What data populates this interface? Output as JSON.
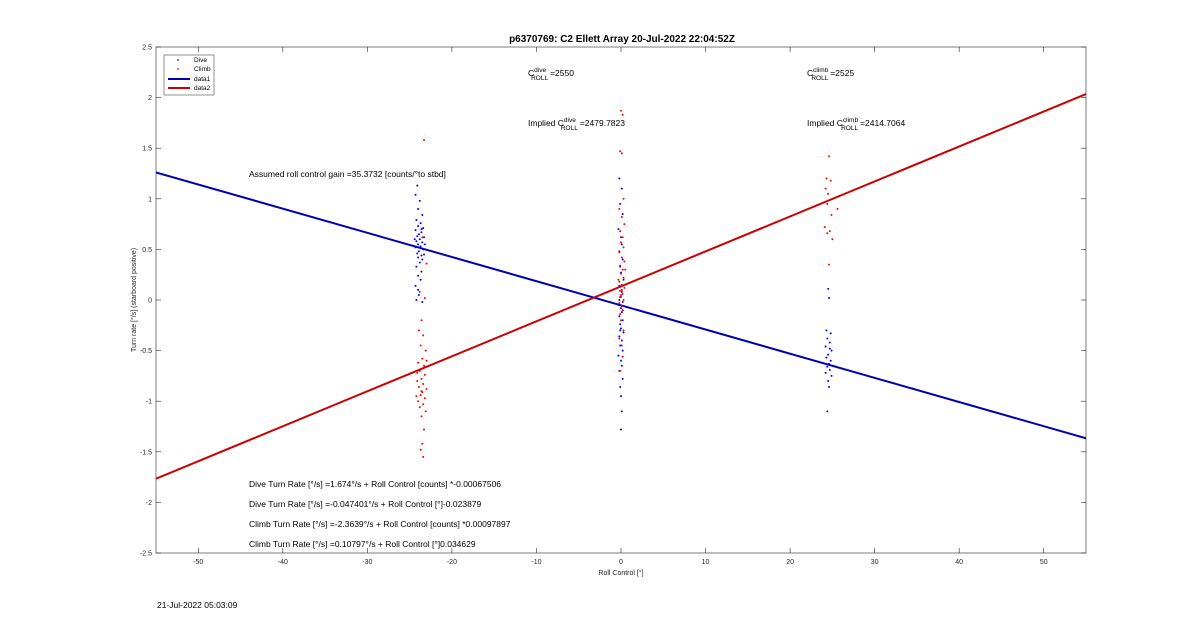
{
  "chart_data": {
    "type": "scatter",
    "title": "p6370769: C2 Ellett Array 20-Jul-2022 22:04:52Z",
    "xlabel": "Roll Control [°]",
    "ylabel": "Turn rate [°/s] (starboard positive)",
    "xlim": [
      -55,
      55
    ],
    "ylim": [
      -2.5,
      2.5
    ],
    "xticks": [
      -50,
      -40,
      -30,
      -20,
      -10,
      0,
      10,
      20,
      30,
      40,
      50
    ],
    "yticks": [
      -2.5,
      -2,
      -1.5,
      -1,
      -0.5,
      0,
      0.5,
      1,
      1.5,
      2,
      2.5
    ],
    "grid": false,
    "legend_position": "top-left",
    "legend": [
      {
        "label": "Dive",
        "kind": "marker",
        "color": "#0000ff"
      },
      {
        "label": "Climb",
        "kind": "marker",
        "color": "#ff0000"
      },
      {
        "label": "data1",
        "kind": "line",
        "color": "#0000b0"
      },
      {
        "label": "data2",
        "kind": "line",
        "color": "#cc0000"
      }
    ],
    "series": [
      {
        "name": "Dive",
        "kind": "scatter",
        "color": "#0000ff",
        "points": [
          [
            -24.1,
            1.13
          ],
          [
            -24.3,
            1.04
          ],
          [
            -23.8,
            0.98
          ],
          [
            -24.0,
            0.9
          ],
          [
            -23.5,
            0.84
          ],
          [
            -24.2,
            0.79
          ],
          [
            -23.7,
            0.76
          ],
          [
            -24.0,
            0.73
          ],
          [
            -23.4,
            0.71
          ],
          [
            -24.3,
            0.69
          ],
          [
            -23.6,
            0.67
          ],
          [
            -23.9,
            0.65
          ],
          [
            -24.1,
            0.63
          ],
          [
            -23.3,
            0.62
          ],
          [
            -23.8,
            0.6
          ],
          [
            -24.2,
            0.58
          ],
          [
            -23.5,
            0.57
          ],
          [
            -24.0,
            0.55
          ],
          [
            -23.7,
            0.53
          ],
          [
            -24.3,
            0.52
          ],
          [
            -23.4,
            0.5
          ],
          [
            -23.9,
            0.48
          ],
          [
            -24.1,
            0.46
          ],
          [
            -23.6,
            0.44
          ],
          [
            -24.0,
            0.42
          ],
          [
            -23.5,
            0.4
          ],
          [
            -23.8,
            0.37
          ],
          [
            -24.2,
            0.33
          ],
          [
            -23.6,
            0.28
          ],
          [
            -24.0,
            0.24
          ],
          [
            -23.7,
            0.2
          ],
          [
            -24.3,
            0.14
          ],
          [
            -23.9,
            0.05
          ],
          [
            -24.2,
            0.0
          ],
          [
            -23.5,
            -0.02
          ],
          [
            -24.0,
            0.1
          ],
          [
            -23.3,
            0.45
          ],
          [
            -24.4,
            0.6
          ],
          [
            -23.6,
            0.7
          ],
          [
            -23.2,
            0.55
          ],
          [
            -0.2,
            1.2
          ],
          [
            0.1,
            1.1
          ],
          [
            -0.1,
            0.95
          ],
          [
            0.2,
            0.85
          ],
          [
            -0.3,
            0.7
          ],
          [
            0.0,
            0.62
          ],
          [
            0.1,
            0.55
          ],
          [
            -0.2,
            0.48
          ],
          [
            0.2,
            0.4
          ],
          [
            -0.1,
            0.33
          ],
          [
            0.0,
            0.27
          ],
          [
            0.3,
            0.2
          ],
          [
            -0.2,
            0.14
          ],
          [
            0.1,
            0.08
          ],
          [
            -0.1,
            0.03
          ],
          [
            0.2,
            -0.02
          ],
          [
            -0.3,
            -0.05
          ],
          [
            0.0,
            -0.08
          ],
          [
            0.1,
            -0.12
          ],
          [
            -0.2,
            -0.16
          ],
          [
            0.2,
            -0.2
          ],
          [
            -0.1,
            -0.24
          ],
          [
            0.0,
            -0.28
          ],
          [
            0.3,
            -0.32
          ],
          [
            -0.2,
            -0.36
          ],
          [
            0.1,
            -0.4
          ],
          [
            -0.1,
            -0.45
          ],
          [
            0.2,
            -0.5
          ],
          [
            -0.3,
            -0.55
          ],
          [
            0.0,
            -0.6
          ],
          [
            0.1,
            -0.65
          ],
          [
            -0.2,
            -0.7
          ],
          [
            0.2,
            -0.78
          ],
          [
            -0.1,
            -0.86
          ],
          [
            0.0,
            -0.95
          ],
          [
            0.1,
            -1.1
          ],
          [
            0.0,
            -1.28
          ],
          [
            -0.1,
            -0.3
          ],
          [
            0.2,
            -0.1
          ],
          [
            -0.2,
            0.0
          ],
          [
            24.5,
            0.11
          ],
          [
            24.6,
            0.02
          ],
          [
            24.3,
            -0.3
          ],
          [
            24.8,
            -0.33
          ],
          [
            24.4,
            -0.38
          ],
          [
            24.7,
            -0.42
          ],
          [
            24.2,
            -0.46
          ],
          [
            24.9,
            -0.5
          ],
          [
            24.5,
            -0.54
          ],
          [
            24.3,
            -0.57
          ],
          [
            24.8,
            -0.6
          ],
          [
            24.6,
            -0.63
          ],
          [
            24.4,
            -0.66
          ],
          [
            24.7,
            -0.69
          ],
          [
            24.2,
            -0.72
          ],
          [
            24.9,
            -0.75
          ],
          [
            24.5,
            -0.8
          ],
          [
            24.6,
            -0.86
          ],
          [
            24.4,
            -1.1
          ],
          [
            24.7,
            -0.48
          ]
        ]
      },
      {
        "name": "Climb",
        "kind": "scatter",
        "color": "#ff0000",
        "points": [
          [
            -23.3,
            1.58
          ],
          [
            -23.5,
            0.62
          ],
          [
            -23.0,
            0.36
          ],
          [
            -23.8,
            0.08
          ],
          [
            -23.2,
            0.02
          ],
          [
            -23.6,
            -0.2
          ],
          [
            -23.9,
            -0.3
          ],
          [
            -23.4,
            -0.35
          ],
          [
            -23.7,
            -0.45
          ],
          [
            -23.1,
            -0.5
          ],
          [
            -23.5,
            -0.58
          ],
          [
            -24.0,
            -0.62
          ],
          [
            -23.3,
            -0.65
          ],
          [
            -23.8,
            -0.7
          ],
          [
            -23.2,
            -0.74
          ],
          [
            -23.6,
            -0.78
          ],
          [
            -24.1,
            -0.8
          ],
          [
            -23.4,
            -0.83
          ],
          [
            -23.9,
            -0.86
          ],
          [
            -23.0,
            -0.88
          ],
          [
            -23.5,
            -0.91
          ],
          [
            -23.7,
            -0.94
          ],
          [
            -23.2,
            -0.97
          ],
          [
            -24.0,
            -1.0
          ],
          [
            -23.4,
            -1.03
          ],
          [
            -23.8,
            -1.06
          ],
          [
            -23.1,
            -1.1
          ],
          [
            -23.6,
            -1.15
          ],
          [
            -23.3,
            -1.28
          ],
          [
            -23.5,
            -1.42
          ],
          [
            -23.7,
            -1.48
          ],
          [
            -23.4,
            -1.55
          ],
          [
            -24.2,
            -0.95
          ],
          [
            -23.0,
            -0.6
          ],
          [
            -24.1,
            -0.72
          ],
          [
            -23.6,
            -0.9
          ],
          [
            0.0,
            1.87
          ],
          [
            0.2,
            1.83
          ],
          [
            -0.1,
            1.47
          ],
          [
            0.1,
            1.45
          ],
          [
            0.3,
            1.0
          ],
          [
            -0.2,
            0.9
          ],
          [
            0.1,
            0.82
          ],
          [
            0.4,
            0.75
          ],
          [
            -0.1,
            0.68
          ],
          [
            0.2,
            0.62
          ],
          [
            0.0,
            0.57
          ],
          [
            0.3,
            0.52
          ],
          [
            -0.2,
            0.47
          ],
          [
            0.1,
            0.42
          ],
          [
            0.4,
            0.38
          ],
          [
            -0.1,
            0.34
          ],
          [
            0.2,
            0.3
          ],
          [
            0.0,
            0.26
          ],
          [
            0.3,
            0.22
          ],
          [
            -0.2,
            0.18
          ],
          [
            0.1,
            0.15
          ],
          [
            0.4,
            0.12
          ],
          [
            -0.1,
            0.09
          ],
          [
            0.2,
            0.06
          ],
          [
            0.0,
            0.03
          ],
          [
            0.3,
            0.0
          ],
          [
            -0.2,
            -0.03
          ],
          [
            0.1,
            -0.06
          ],
          [
            0.2,
            -0.1
          ],
          [
            -0.1,
            -0.14
          ],
          [
            0.0,
            -0.2
          ],
          [
            0.3,
            -0.3
          ],
          [
            -0.2,
            -0.38
          ],
          [
            0.1,
            -0.45
          ],
          [
            0.2,
            -0.56
          ],
          [
            -0.1,
            -0.7
          ],
          [
            0.0,
            0.05
          ],
          [
            0.1,
            0.1
          ],
          [
            -0.3,
            0.2
          ],
          [
            0.5,
            0.3
          ],
          [
            24.6,
            1.42
          ],
          [
            24.3,
            1.2
          ],
          [
            24.8,
            1.18
          ],
          [
            24.2,
            1.1
          ],
          [
            24.5,
            1.05
          ],
          [
            24.4,
            0.95
          ],
          [
            25.6,
            0.9
          ],
          [
            24.9,
            0.84
          ],
          [
            24.1,
            0.72
          ],
          [
            24.7,
            0.68
          ],
          [
            24.4,
            0.66
          ],
          [
            25.0,
            0.6
          ],
          [
            24.6,
            0.35
          ]
        ]
      },
      {
        "name": "data1",
        "kind": "line",
        "color": "#0000b0",
        "x": [
          -55,
          55
        ],
        "y": [
          1.2608,
          -1.3664
        ]
      },
      {
        "name": "data2",
        "kind": "line",
        "color": "#cc0000",
        "x": [
          -55,
          55
        ],
        "y": [
          -1.7657,
          2.0352
        ]
      }
    ],
    "annotations": {
      "c_dive": {
        "base": "C",
        "sup": "dive",
        "sub": "ROLL",
        "value": "=2550"
      },
      "c_climb": {
        "base": "C",
        "sup": "climb",
        "sub": "ROLL",
        "value": "=2525"
      },
      "implied_dive": {
        "prefix": "Implied C",
        "sup": "dive",
        "sub": "ROLL",
        "value": "=2479.7823"
      },
      "implied_climb": {
        "prefix": "Implied C",
        "sup": "climb",
        "sub": "ROLL",
        "value": "=2414.7064"
      },
      "gain": "Assumed roll control gain =35.3732 [counts/°to stbd]",
      "eq1": "Dive Turn Rate [°/s] =1.674°/s + Roll Control [counts] *-0.00067506",
      "eq2": "Dive Turn Rate [°/s] =-0.047401°/s + Roll Control [°]-0.023879",
      "eq3": "Climb Turn Rate [°/s] =-2.3639°/s + Roll Control [counts] *0.00097897",
      "eq4": "Climb Turn Rate [°/s] =0.10797°/s + Roll Control [°]0.034629"
    }
  },
  "footer": {
    "timestamp": "21-Jul-2022 05:03:09"
  }
}
